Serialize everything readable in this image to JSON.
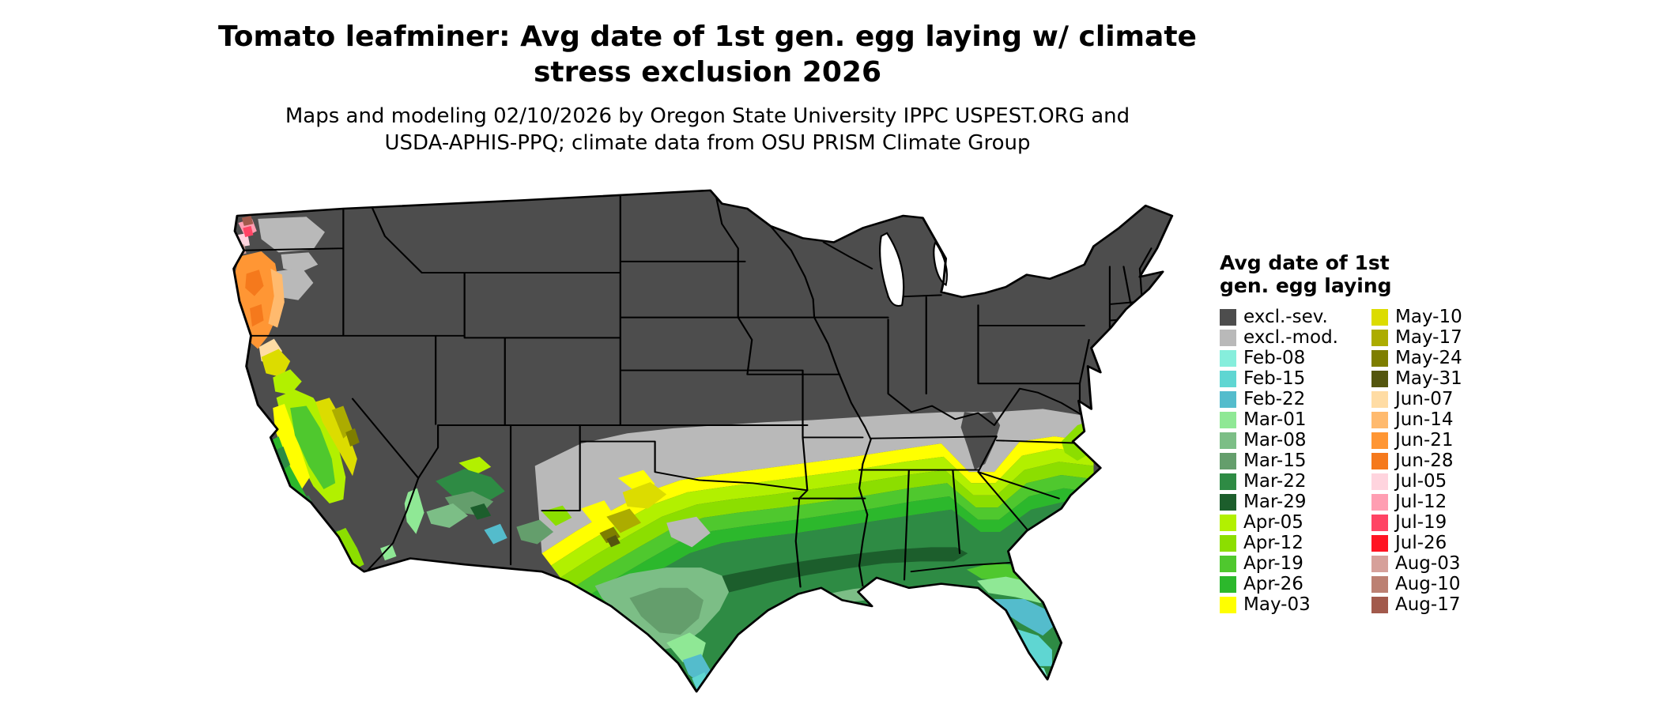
{
  "header": {
    "title_line1": "Tomato leafminer: Avg date of 1st gen. egg laying w/ climate",
    "title_line2": "stress exclusion 2026",
    "subtitle_line1": "Maps and modeling 02/10/2026 by Oregon State University IPPC USPEST.ORG and",
    "subtitle_line2": "USDA-APHIS-PPQ; climate data from OSU PRISM Climate Group"
  },
  "legend": {
    "title_line1": "Avg date of 1st",
    "title_line2": "gen. egg laying",
    "columns": [
      {
        "entries": [
          {
            "label": "excl.-sev.",
            "key": "excl_sev"
          },
          {
            "label": "excl.-mod.",
            "key": "excl_mod"
          },
          {
            "label": "Feb-08",
            "key": "feb08"
          },
          {
            "label": "Feb-15",
            "key": "feb15"
          },
          {
            "label": "Feb-22",
            "key": "feb22"
          },
          {
            "label": "Mar-01",
            "key": "mar01"
          },
          {
            "label": "Mar-08",
            "key": "mar08"
          },
          {
            "label": "Mar-15",
            "key": "mar15"
          },
          {
            "label": "Mar-22",
            "key": "mar22"
          },
          {
            "label": "Mar-29",
            "key": "mar29"
          },
          {
            "label": "Apr-05",
            "key": "apr05"
          },
          {
            "label": "Apr-12",
            "key": "apr12"
          },
          {
            "label": "Apr-19",
            "key": "apr19"
          },
          {
            "label": "Apr-26",
            "key": "apr26"
          },
          {
            "label": "May-03",
            "key": "may03"
          }
        ]
      },
      {
        "entries": [
          {
            "label": "May-10",
            "key": "may10"
          },
          {
            "label": "May-17",
            "key": "may17"
          },
          {
            "label": "May-24",
            "key": "may24"
          },
          {
            "label": "May-31",
            "key": "may31"
          },
          {
            "label": "Jun-07",
            "key": "jun07"
          },
          {
            "label": "Jun-14",
            "key": "jun14"
          },
          {
            "label": "Jun-21",
            "key": "jun21"
          },
          {
            "label": "Jun-28",
            "key": "jun28"
          },
          {
            "label": "Jul-05",
            "key": "jul05"
          },
          {
            "label": "Jul-12",
            "key": "jul12"
          },
          {
            "label": "Jul-19",
            "key": "jul19"
          },
          {
            "label": "Jul-26",
            "key": "jul26"
          },
          {
            "label": "Aug-03",
            "key": "aug03"
          },
          {
            "label": "Aug-10",
            "key": "aug10"
          },
          {
            "label": "Aug-17",
            "key": "aug17"
          }
        ]
      }
    ]
  },
  "map": {
    "background": "#FFFFFF",
    "border_color": "#000000",
    "lake_color": "#FFFFFF",
    "palette": {
      "excl_sev": "#4D4D4D",
      "excl_mod": "#B9B9B9",
      "feb08": "#86EEDC",
      "feb15": "#5FD6D2",
      "feb22": "#54BCCC",
      "mar01": "#8FE895",
      "mar08": "#7CBE86",
      "mar15": "#649E6C",
      "mar22": "#2E8B44",
      "mar29": "#1C5E2C",
      "apr05": "#B2F000",
      "apr12": "#8CDE00",
      "apr19": "#4FC82E",
      "apr26": "#2CB82C",
      "may03": "#FFFF00",
      "may10": "#DCDC00",
      "may17": "#ACAC00",
      "may24": "#7E7E00",
      "may31": "#54560E",
      "jun07": "#FFDCA4",
      "jun14": "#FFBA6E",
      "jun21": "#FF9634",
      "jun28": "#F5791C",
      "jul05": "#FFD4DE",
      "jul12": "#FF9EB2",
      "jul19": "#FF4464",
      "jul26": "#FF1423",
      "aug03": "#D6A09A",
      "aug10": "#BC8072",
      "aug17": "#A25A4C"
    }
  }
}
